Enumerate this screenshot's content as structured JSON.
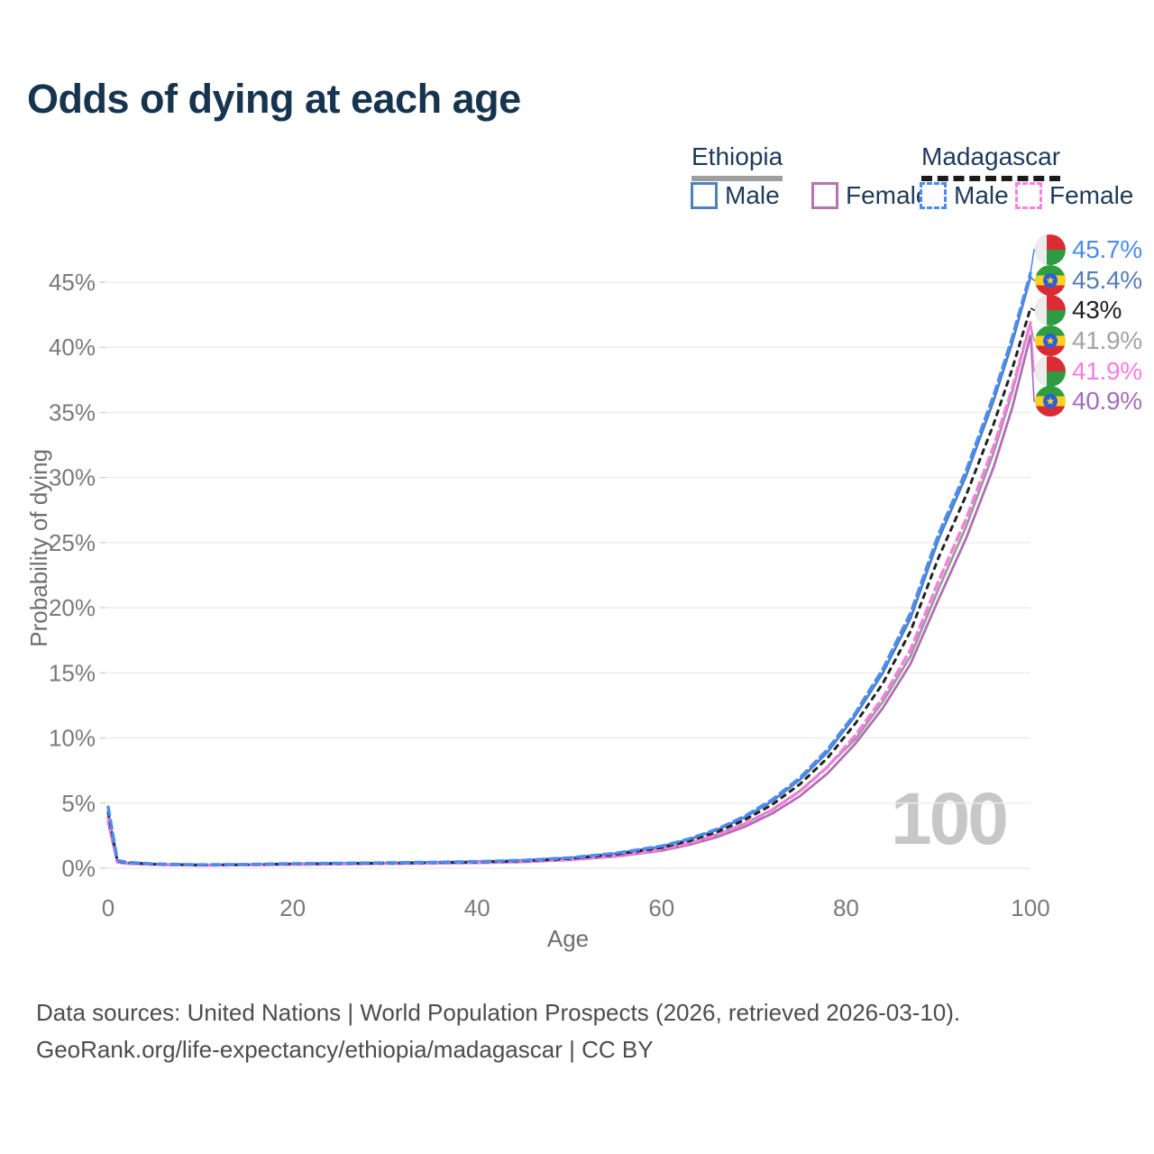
{
  "chart_data": {
    "type": "line",
    "title": "Odds of dying at each age",
    "xlabel": "Age",
    "ylabel": "Probability of dying",
    "xlim": [
      0,
      100
    ],
    "ylim_pct": [
      0,
      45
    ],
    "x_ticks": [
      0,
      20,
      40,
      60,
      80,
      100
    ],
    "y_tick_labels": [
      "0%",
      "5%",
      "10%",
      "15%",
      "20%",
      "25%",
      "30%",
      "35%",
      "40%",
      "45%"
    ],
    "grid": "horizontal",
    "legend_position": "top-right",
    "watermark": "100",
    "ages": [
      0,
      1,
      2,
      5,
      10,
      15,
      20,
      25,
      30,
      35,
      40,
      45,
      50,
      55,
      60,
      63,
      66,
      69,
      72,
      75,
      78,
      81,
      84,
      87,
      90,
      93,
      96,
      98,
      100
    ],
    "series": [
      {
        "id": "ethiopia-both",
        "country": "Ethiopia",
        "sex": "Both",
        "color": "#9c9c9c",
        "dash": null,
        "width": 2.8,
        "values_pct": [
          3.8,
          0.48,
          0.38,
          0.28,
          0.23,
          0.26,
          0.31,
          0.34,
          0.37,
          0.4,
          0.44,
          0.53,
          0.69,
          0.99,
          1.47,
          1.95,
          2.58,
          3.42,
          4.51,
          5.94,
          7.8,
          9.9,
          12.8,
          16.3,
          21.4,
          26.2,
          31.9,
          36.5,
          41.9
        ]
      },
      {
        "id": "ethiopia-female",
        "country": "Ethiopia",
        "sex": "Female",
        "color": "#b06fb3",
        "dash": null,
        "width": 2.8,
        "values_pct": [
          3.5,
          0.45,
          0.36,
          0.27,
          0.22,
          0.24,
          0.28,
          0.31,
          0.34,
          0.37,
          0.41,
          0.48,
          0.63,
          0.9,
          1.35,
          1.8,
          2.39,
          3.18,
          4.2,
          5.54,
          7.28,
          9.55,
          12.3,
          15.7,
          20.6,
          25.3,
          30.8,
          35.3,
          40.9
        ]
      },
      {
        "id": "ethiopia-male",
        "country": "Ethiopia",
        "sex": "Male",
        "color": "#4f81bd",
        "dash": null,
        "width": 2.8,
        "values_pct": [
          4.2,
          0.52,
          0.41,
          0.3,
          0.25,
          0.28,
          0.34,
          0.38,
          0.41,
          0.45,
          0.5,
          0.6,
          0.78,
          1.12,
          1.66,
          2.21,
          2.93,
          3.9,
          5.15,
          6.8,
          8.92,
          11.7,
          15.0,
          19.2,
          25.2,
          30.1,
          35.9,
          40.3,
          45.4
        ]
      },
      {
        "id": "madagascar-female",
        "country": "Madagascar",
        "sex": "Female",
        "color": "#f97ce0",
        "dash": "9 6",
        "width": 3.4,
        "values_pct": [
          3.9,
          0.5,
          0.39,
          0.29,
          0.23,
          0.26,
          0.3,
          0.33,
          0.36,
          0.39,
          0.43,
          0.51,
          0.67,
          0.96,
          1.44,
          1.92,
          2.55,
          3.39,
          4.48,
          5.91,
          7.77,
          10.2,
          13.1,
          16.8,
          22.0,
          26.8,
          32.4,
          36.8,
          41.9
        ]
      },
      {
        "id": "madagascar-both",
        "country": "Madagascar",
        "sex": "Both",
        "color": "#222222",
        "dash": "5 6.5",
        "width": 3,
        "values_pct": [
          4.3,
          0.55,
          0.43,
          0.31,
          0.25,
          0.28,
          0.33,
          0.36,
          0.39,
          0.43,
          0.47,
          0.56,
          0.74,
          1.06,
          1.58,
          2.1,
          2.78,
          3.7,
          4.89,
          6.45,
          8.47,
          11.1,
          14.2,
          18.2,
          23.8,
          28.6,
          34.1,
          38.3,
          43.0
        ]
      },
      {
        "id": "madagascar-male",
        "country": "Madagascar",
        "sex": "Male",
        "color": "#4a8cf5",
        "dash": "9 6",
        "width": 3.4,
        "values_pct": [
          4.7,
          0.6,
          0.46,
          0.33,
          0.27,
          0.3,
          0.35,
          0.39,
          0.42,
          0.46,
          0.51,
          0.61,
          0.8,
          1.15,
          1.7,
          2.26,
          3.0,
          3.99,
          5.27,
          6.95,
          9.12,
          11.9,
          15.3,
          19.6,
          25.6,
          30.5,
          36.3,
          40.7,
          45.7
        ]
      }
    ],
    "end_labels": [
      {
        "text": "45.7%",
        "flag": "madagascar",
        "color": "#4a8af2",
        "value_pct": 45.7
      },
      {
        "text": "45.4%",
        "flag": "ethiopia",
        "color": "#567eb2",
        "value_pct": 45.4
      },
      {
        "text": "43%",
        "flag": "madagascar",
        "color": "#222222",
        "value_pct": 43
      },
      {
        "text": "41.9%",
        "flag": "ethiopia",
        "color": "#a3a3a3",
        "value_pct": 41.9
      },
      {
        "text": "41.9%",
        "flag": "madagascar",
        "color": "#f97ce0",
        "value_pct": 41.9
      },
      {
        "text": "40.9%",
        "flag": "ethiopia",
        "color": "#aa6bbd",
        "value_pct": 40.9
      }
    ]
  },
  "legend": {
    "groups": [
      {
        "label": "Ethiopia",
        "style": "solid",
        "underline_color": "#9e9e9e",
        "items": [
          {
            "label": "Male",
            "color": "#4f81bd"
          },
          {
            "label": "Female",
            "color": "#b573af"
          }
        ]
      },
      {
        "label": "Madagascar",
        "style": "dashed",
        "underline_color": "#1a1a1a",
        "items": [
          {
            "label": "Male",
            "color": "#4a8cf5"
          },
          {
            "label": "Female",
            "color": "#fb80e8"
          }
        ]
      }
    ]
  },
  "footer": {
    "line1": "Data sources: United Nations | World Population Prospects (2026, retrieved 2026-03-10).",
    "line2": "GeoRank.org/life-expectancy/ethiopia/madagascar | CC BY"
  }
}
